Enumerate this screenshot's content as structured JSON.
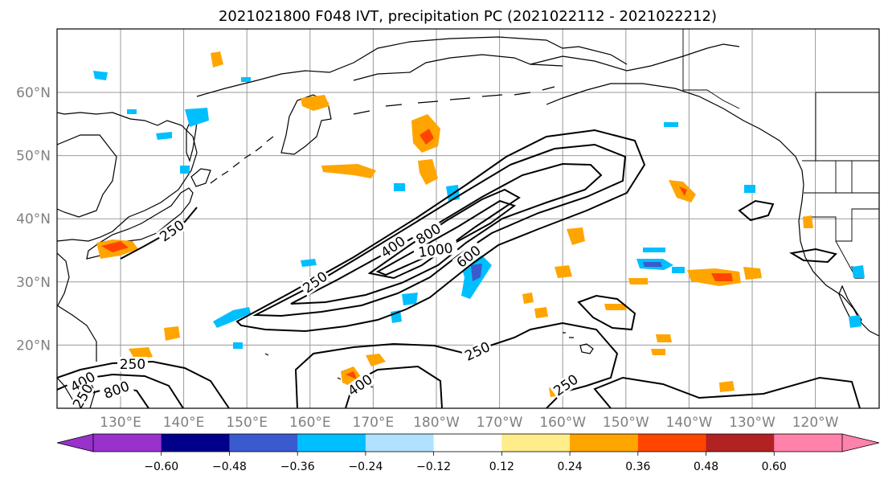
{
  "title": "2021021800 F048 IVT, precipitation PC (2021022112 - 2021022212)",
  "map": {
    "lat_labels": [
      "60°N",
      "50°N",
      "40°N",
      "30°N",
      "20°N"
    ],
    "lon_labels": [
      "130°E",
      "140°E",
      "150°E",
      "160°E",
      "170°E",
      "180°W",
      "170°W",
      "160°W",
      "150°W",
      "140°W",
      "130°W",
      "120°W"
    ]
  },
  "contours": {
    "labels": [
      "250",
      "400",
      "800",
      "1000",
      "600",
      "250",
      "250",
      "250",
      "400",
      "250",
      "400",
      "800",
      "250"
    ]
  },
  "colorbar": {
    "colors": [
      "#9932CC",
      "#00008B",
      "#3A5BCD",
      "#00BFFF",
      "#B0E2FF",
      "#FFFFFF",
      "#FFEC8B",
      "#FFA500",
      "#FF4500",
      "#B22222",
      "#FF82AB"
    ],
    "tick_labels": [
      "−0.60",
      "−0.48",
      "−0.36",
      "−0.24",
      "−0.12",
      "0.12",
      "0.24",
      "0.36",
      "0.48",
      "0.60"
    ]
  }
}
